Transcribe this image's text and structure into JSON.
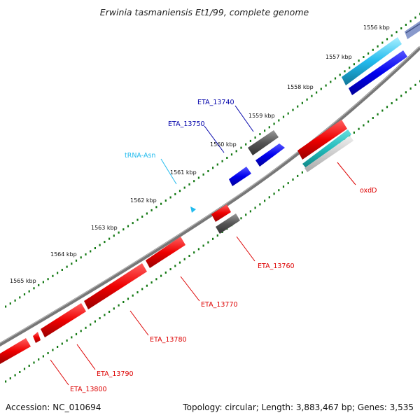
{
  "title": "Erwinia tasmaniensis Et1/99, complete genome",
  "ticks": [
    "1556 kbp",
    "1557 kbp",
    "1558 kbp",
    "1559 kbp",
    "1560 kbp",
    "1561 kbp",
    "1562 kbp",
    "1563 kbp",
    "1564 kbp",
    "1565 kbp"
  ],
  "features": [
    {
      "label": "ETA_13740",
      "color": "#0000aa"
    },
    {
      "label": "ETA_13750",
      "color": "#0000aa"
    },
    {
      "label": "tRNA-Asn",
      "color": "#22bbdd"
    },
    {
      "label": "oxdD",
      "color": "#dd0000"
    },
    {
      "label": "ETA_13760",
      "color": "#dd0000"
    },
    {
      "label": "ETA_13770",
      "color": "#dd0000"
    },
    {
      "label": "ETA_13780",
      "color": "#dd0000"
    },
    {
      "label": "ETA_13790",
      "color": "#dd0000"
    },
    {
      "label": "ETA_13800",
      "color": "#dd0000"
    }
  ],
  "footer": {
    "accession": "Accession: NC_010694",
    "summary": "Topology: circular; Length: 3,883,467 bp; Genes: 3,535"
  },
  "colors": {
    "cds_forward": "#0000ee",
    "cds_reverse": "#ee0000",
    "gene": "#555555",
    "trna": "#22bbee",
    "rrna": "#22bbbb",
    "backbone": "#777777",
    "tick_dots": "#117711"
  }
}
